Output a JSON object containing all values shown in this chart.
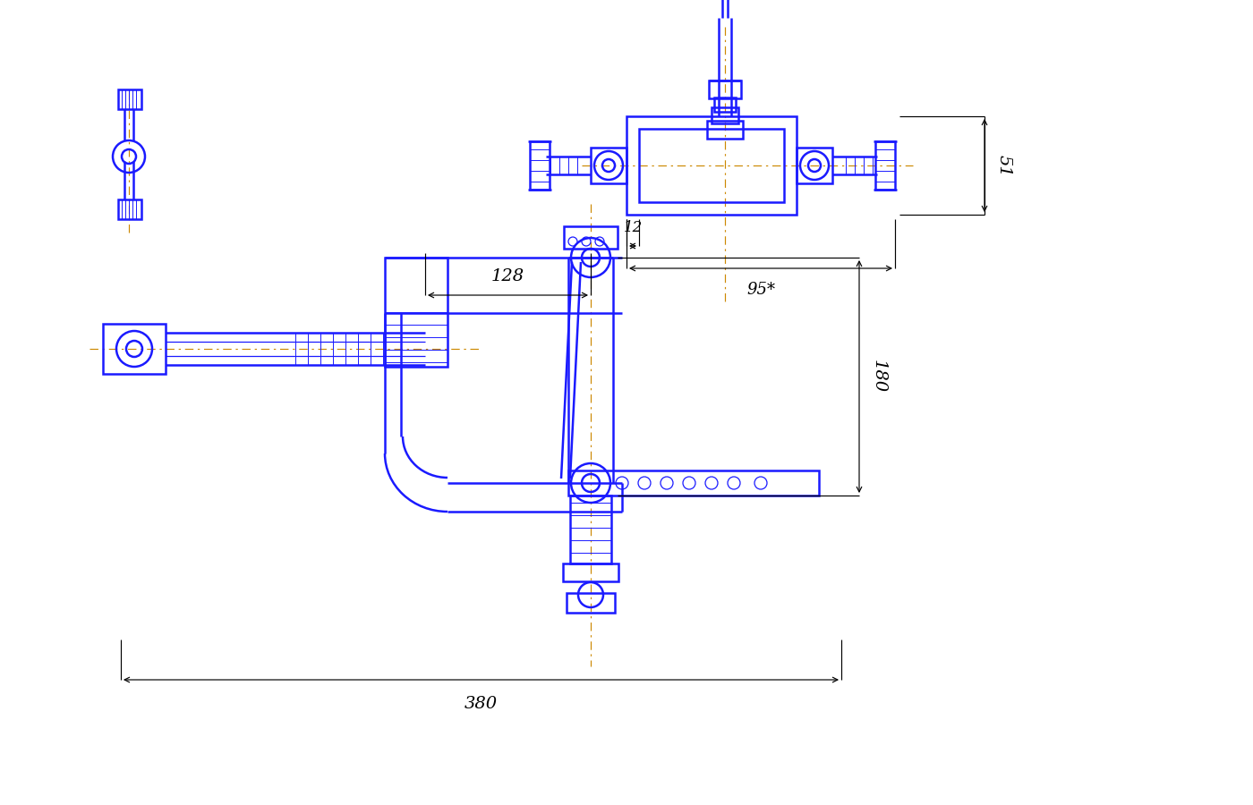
{
  "bg_color": "#ffffff",
  "dc": "#1a1aff",
  "blk": "#000000",
  "clc": "#cc8800",
  "lw": 1.8,
  "tlw": 0.9,
  "dlw": 0.85,
  "dims": {
    "d380": "380",
    "d128": "128",
    "d180": "180",
    "d51": "51",
    "d95": "95*",
    "d12": "12"
  }
}
